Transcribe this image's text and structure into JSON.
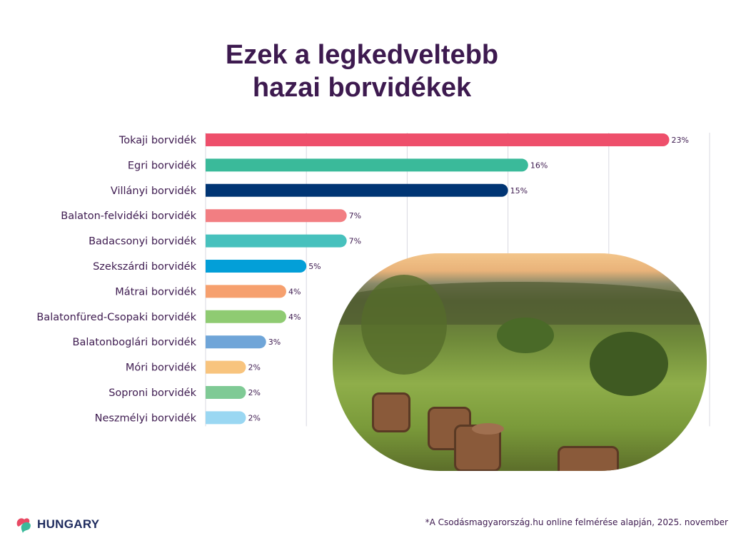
{
  "title_line1": "Ezek a legkedveltebb",
  "title_line2": "hazai borvidékek",
  "chart_data": {
    "type": "bar",
    "orientation": "horizontal",
    "title": "Ezek a legkedveltebb hazai borvidékek",
    "xlim": [
      0,
      25
    ],
    "grid": true,
    "categories": [
      "Tokaji borvidék",
      "Egri borvidék",
      "Villányi borvidék",
      "Balaton-felvidéki borvidék",
      "Badacsonyi borvidék",
      "Szekszárdi borvidék",
      "Mátrai borvidék",
      "Balatonfüred-Csopaki borvidék",
      "Balatonboglári borvidék",
      "Móri borvidék",
      "Soproni borvidék",
      "Neszmélyi borvidék"
    ],
    "values": [
      23,
      16,
      15,
      7,
      7,
      5,
      4,
      4,
      3,
      2,
      2,
      2
    ],
    "value_labels": [
      "23%",
      "16%",
      "15%",
      "7%",
      "7%",
      "5%",
      "4%",
      "4%",
      "3%",
      "2%",
      "2%",
      "2%"
    ],
    "colors": [
      "#ee4f6b",
      "#3aba9a",
      "#003574",
      "#f27e82",
      "#47c1bd",
      "#039fd8",
      "#f6a06e",
      "#8fcb72",
      "#6fa5d8",
      "#f8c47e",
      "#7fca95",
      "#9ad7f2"
    ]
  },
  "logo_text": "HUNGARY",
  "footnote": "*A Csodásmagyarország.hu online felmérése alapján, 2025. november"
}
